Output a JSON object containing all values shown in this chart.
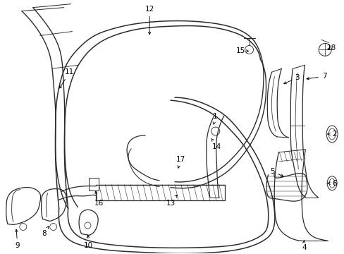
{
  "background": "#ffffff",
  "line_color": "#2a2a2a",
  "lw": 0.9,
  "figsize": [
    4.89,
    3.6
  ],
  "dpi": 100,
  "label_positions": {
    "1": {
      "lxy": [
        305,
        165
      ],
      "axy": [
        303,
        180
      ]
    },
    "2": {
      "lxy": [
        475,
        190
      ],
      "axy": [
        465,
        190
      ]
    },
    "3": {
      "lxy": [
        422,
        110
      ],
      "axy": [
        400,
        120
      ]
    },
    "4": {
      "lxy": [
        432,
        352
      ],
      "axy": [
        432,
        338
      ]
    },
    "5": {
      "lxy": [
        387,
        243
      ],
      "axy": [
        406,
        252
      ]
    },
    "6": {
      "lxy": [
        475,
        260
      ],
      "axy": [
        465,
        260
      ]
    },
    "7": {
      "lxy": [
        461,
        108
      ],
      "axy": [
        432,
        112
      ]
    },
    "8": {
      "lxy": [
        62,
        332
      ],
      "axy": [
        70,
        318
      ]
    },
    "9": {
      "lxy": [
        24,
        349
      ],
      "axy": [
        22,
        322
      ]
    },
    "10": {
      "lxy": [
        125,
        349
      ],
      "axy": [
        124,
        330
      ]
    },
    "11": {
      "lxy": [
        98,
        102
      ],
      "axy": [
        82,
        128
      ]
    },
    "12": {
      "lxy": [
        212,
        12
      ],
      "axy": [
        212,
        52
      ]
    },
    "13": {
      "lxy": [
        242,
        288
      ],
      "axy": [
        252,
        276
      ]
    },
    "14": {
      "lxy": [
        308,
        208
      ],
      "axy": [
        300,
        196
      ]
    },
    "15": {
      "lxy": [
        342,
        72
      ],
      "axy": [
        354,
        72
      ]
    },
    "16": {
      "lxy": [
        140,
        288
      ],
      "axy": [
        134,
        268
      ]
    },
    "17": {
      "lxy": [
        256,
        226
      ],
      "axy": [
        252,
        242
      ]
    },
    "18": {
      "lxy": [
        471,
        68
      ],
      "axy": [
        462,
        70
      ]
    }
  }
}
